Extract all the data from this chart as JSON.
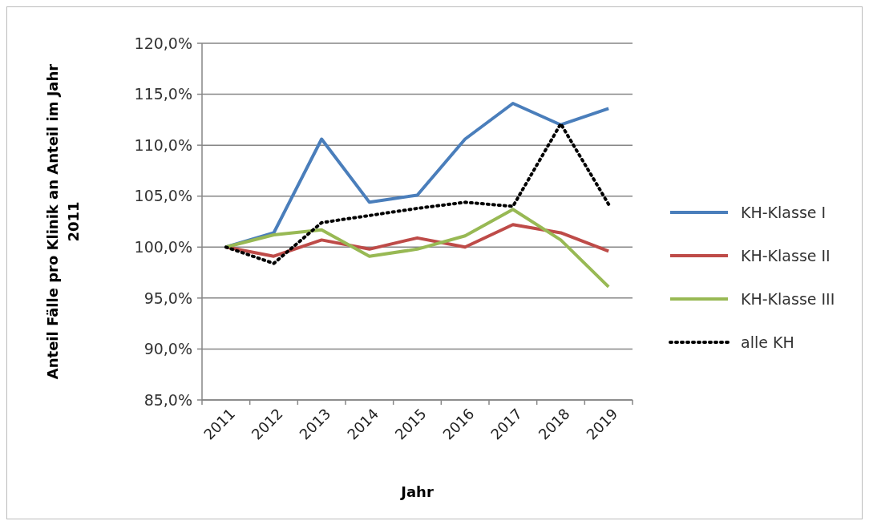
{
  "chart_data": {
    "type": "line",
    "xlabel": "Jahr",
    "ylabel": "Anteil Fälle pro Klinik an Anteil im Jahr 2011",
    "categories": [
      "2011",
      "2012",
      "2013",
      "2014",
      "2015",
      "2016",
      "2017",
      "2018",
      "2019"
    ],
    "series": [
      {
        "name": "KH-Klasse I",
        "color": "#4a7ebb",
        "values": [
          100,
          101.4,
          110.6,
          104.4,
          105.1,
          110.6,
          114.1,
          112.0,
          113.6
        ]
      },
      {
        "name": "KH-Klasse II",
        "color": "#be4b48",
        "values": [
          100,
          99.1,
          100.7,
          99.8,
          100.9,
          100.0,
          102.2,
          101.4,
          99.6
        ]
      },
      {
        "name": "KH-Klasse III",
        "color": "#98b954",
        "values": [
          100,
          101.2,
          101.7,
          99.1,
          99.8,
          101.1,
          103.7,
          100.7,
          96.1
        ]
      },
      {
        "name": "alle KH",
        "color": "#000000",
        "line_style": "dotted",
        "values": [
          100,
          98.4,
          102.4,
          103.1,
          103.8,
          104.4,
          104.0,
          112.1,
          104.2
        ]
      }
    ],
    "ylim": [
      85,
      120
    ],
    "yticks": [
      {
        "value": 85,
        "label": "85,0%"
      },
      {
        "value": 90,
        "label": "90,0%"
      },
      {
        "value": 95,
        "label": "95,0%"
      },
      {
        "value": 100,
        "label": "100,0%"
      },
      {
        "value": 105,
        "label": "105,0%"
      },
      {
        "value": 110,
        "label": "110,0%"
      },
      {
        "value": 115,
        "label": "115,0%"
      },
      {
        "value": 120,
        "label": "120,0%"
      }
    ],
    "grid": "y",
    "legend": "right",
    "marker": "none",
    "line_style": "solid"
  }
}
